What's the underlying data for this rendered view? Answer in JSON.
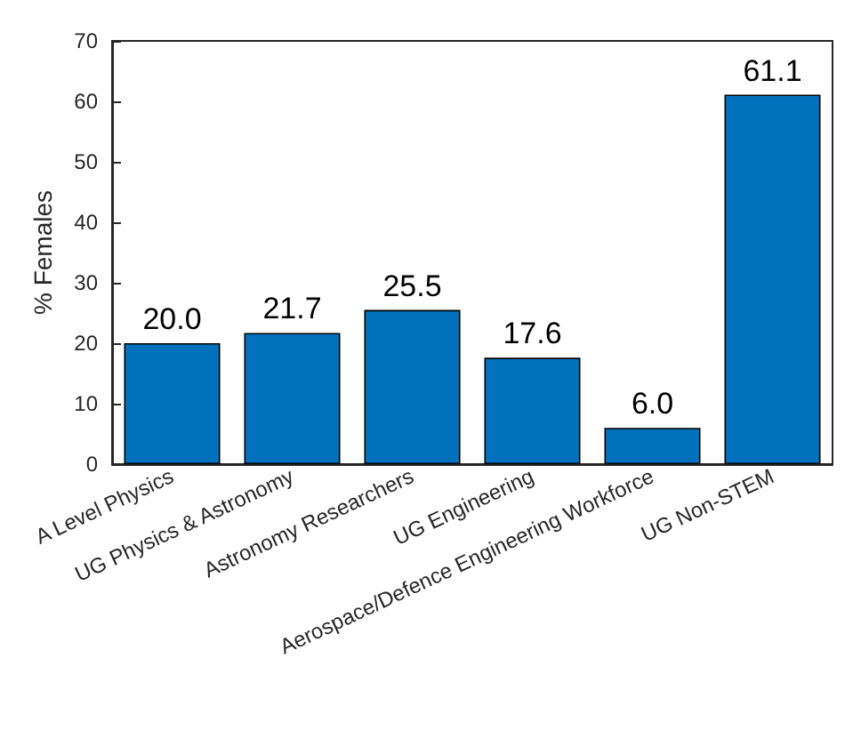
{
  "chart_data": {
    "type": "bar",
    "ylabel": "% Females",
    "categories": [
      "A Level Physics",
      "UG Physics & Astronomy",
      "Astronomy Researchers",
      "UG Engineering",
      "Aerospace/Defence Engineering Workforce",
      "UG Non-STEM"
    ],
    "values": [
      20.0,
      21.7,
      25.5,
      17.6,
      6.0,
      61.1
    ],
    "value_labels": [
      "20.0",
      "21.7",
      "25.5",
      "17.6",
      "6.0",
      "61.1"
    ],
    "color": "#0072bd",
    "ylim": [
      0,
      70
    ],
    "yticks": [
      0,
      10,
      20,
      30,
      40,
      50,
      60,
      70
    ],
    "grid": false
  }
}
